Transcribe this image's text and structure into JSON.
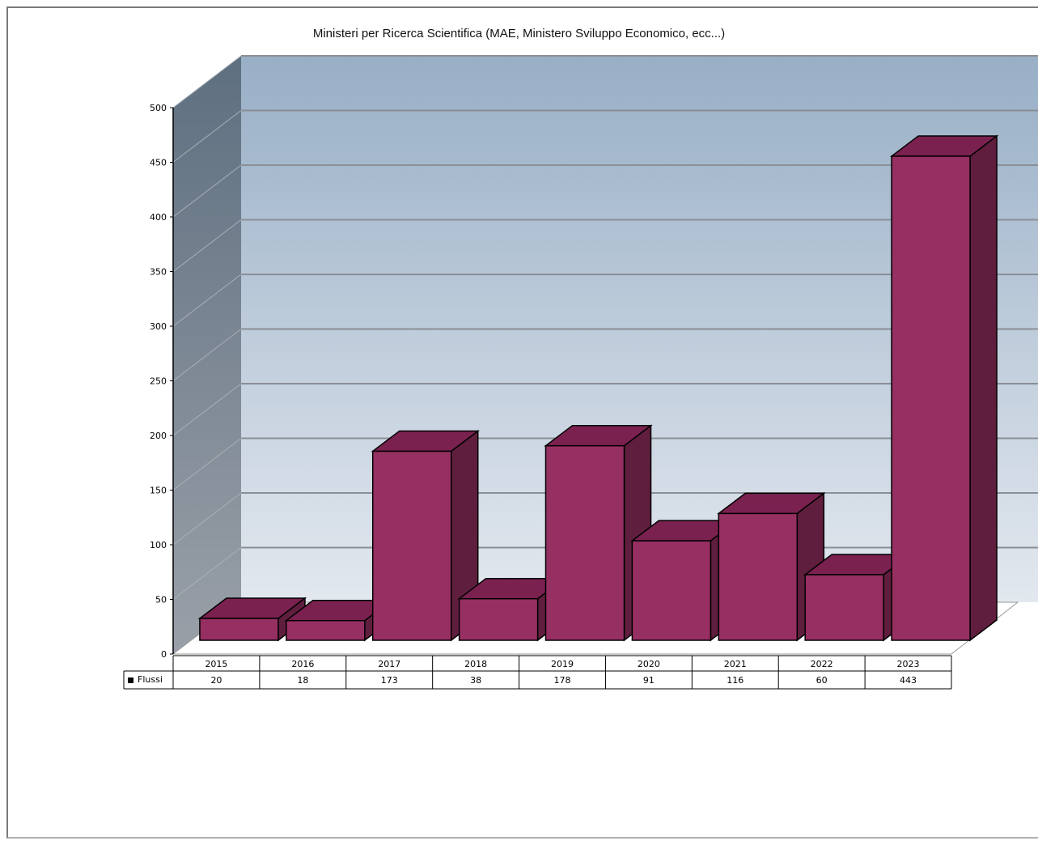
{
  "chart_data": {
    "type": "bar",
    "title": "Ministeri per Ricerca Scientifica (MAE, Ministero Sviluppo  Economico, ecc...)",
    "categories": [
      "2015",
      "2016",
      "2017",
      "2018",
      "2019",
      "2020",
      "2021",
      "2022",
      "2023"
    ],
    "series": [
      {
        "name": "Flussi",
        "values": [
          20,
          18,
          173,
          38,
          178,
          91,
          116,
          60,
          443
        ]
      }
    ],
    "y_ticks": [
      "0",
      "50",
      "100",
      "150",
      "200",
      "250",
      "300",
      "350",
      "400",
      "450",
      "500"
    ],
    "ylim": [
      0,
      500
    ],
    "grid": true,
    "legend": "data table below the chart",
    "colors": {
      "bar_front": "#962F62",
      "bar_top": "#7A2150",
      "bar_side": "#601E3E",
      "wall_top": "#98AFC6",
      "wall_bottom": "#E3E8EF"
    }
  }
}
